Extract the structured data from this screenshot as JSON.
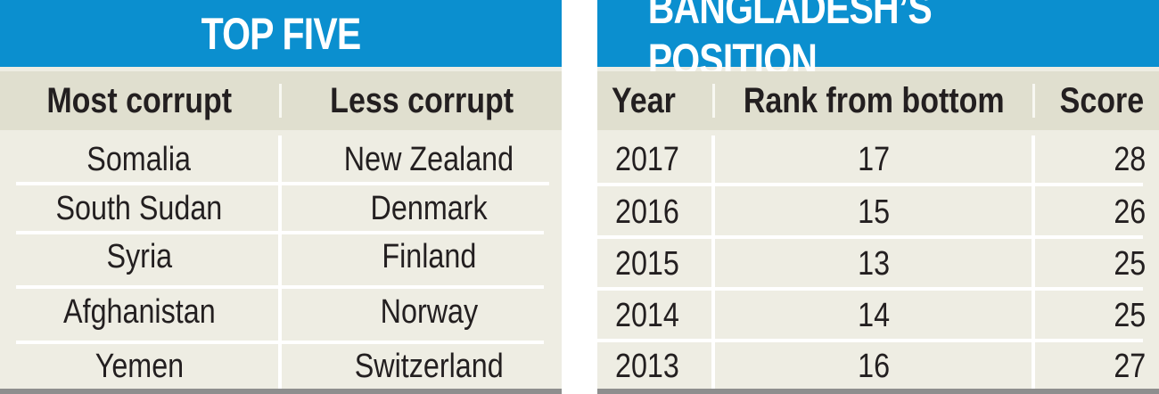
{
  "left": {
    "title": "TOP FIVE",
    "headers": {
      "most": "Most corrupt",
      "less": "Less corrupt"
    },
    "rows": [
      {
        "most": "Somalia",
        "less": "New Zealand"
      },
      {
        "most": "South Sudan",
        "less": "Denmark"
      },
      {
        "most": "Syria",
        "less": "Finland"
      },
      {
        "most": "Afghanistan",
        "less": "Norway"
      },
      {
        "most": "Yemen",
        "less": "Switzerland"
      }
    ]
  },
  "right": {
    "title": "BANGLADESH’S POSITION",
    "headers": {
      "year": "Year",
      "rank": "Rank from bottom",
      "score": "Score"
    },
    "rows": [
      {
        "year": "2017",
        "rank": "17",
        "score": "28"
      },
      {
        "year": "2016",
        "rank": "15",
        "score": "26"
      },
      {
        "year": "2015",
        "rank": "13",
        "score": "25"
      },
      {
        "year": "2014",
        "rank": "14",
        "score": "25"
      },
      {
        "year": "2013",
        "rank": "16",
        "score": "27"
      }
    ]
  },
  "colors": {
    "title_bg": "#0b8fcf",
    "panel_bg": "#eeede3",
    "header_bg": "#e0dfcf",
    "text": "#231f20"
  }
}
